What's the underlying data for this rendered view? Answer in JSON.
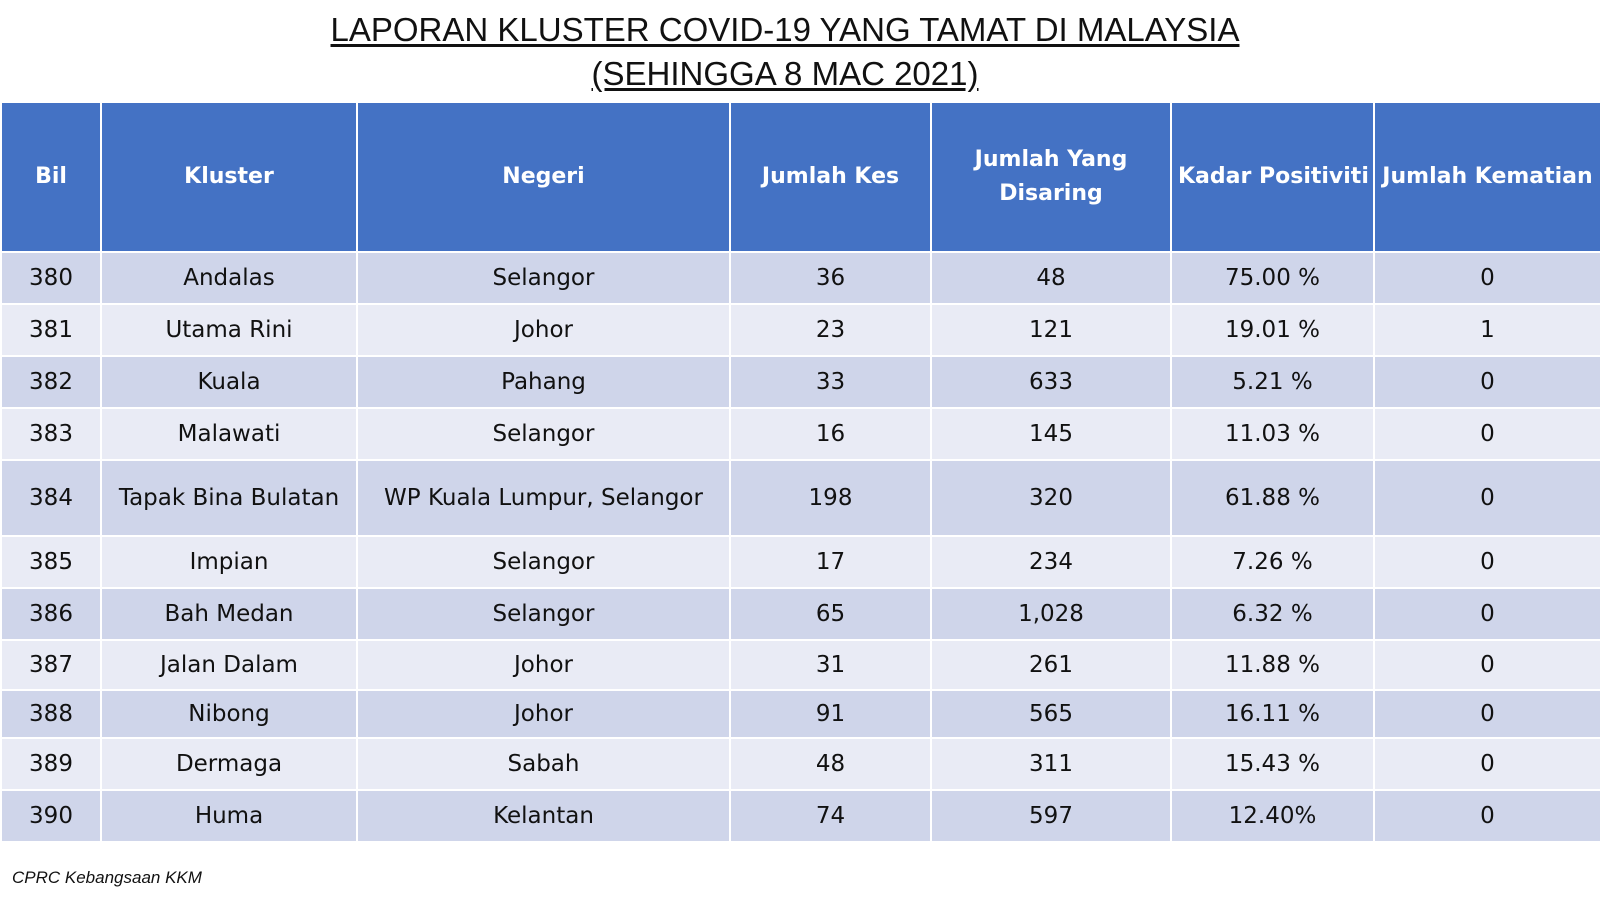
{
  "title": {
    "line1": "LAPORAN KLUSTER COVID-19 YANG TAMAT DI MALAYSIA",
    "line2": "(SEHINGGA  8 MAC 2021)"
  },
  "table": {
    "headers": [
      "Bil",
      "Kluster",
      "Negeri",
      "Jumlah Kes",
      "Jumlah Yang Disaring",
      "Kadar Positiviti",
      "Jumlah Kematian"
    ],
    "rows": [
      [
        "380",
        "Andalas",
        "Selangor",
        "36",
        "48",
        "75.00 %",
        "0"
      ],
      [
        "381",
        "Utama Rini",
        "Johor",
        "23",
        "121",
        "19.01 %",
        "1"
      ],
      [
        "382",
        "Kuala",
        "Pahang",
        "33",
        "633",
        "5.21 %",
        "0"
      ],
      [
        "383",
        "Malawati",
        "Selangor",
        "16",
        "145",
        "11.03 %",
        "0"
      ],
      [
        "384",
        "Tapak Bina Bulatan",
        "WP Kuala Lumpur, Selangor",
        "198",
        "320",
        "61.88 %",
        "0"
      ],
      [
        "385",
        "Impian",
        "Selangor",
        "17",
        "234",
        "7.26 %",
        "0"
      ],
      [
        "386",
        "Bah Medan",
        "Selangor",
        "65",
        "1,028",
        "6.32 %",
        "0"
      ],
      [
        "387",
        "Jalan Dalam",
        "Johor",
        "31",
        "261",
        "11.88 %",
        "0"
      ],
      [
        "388",
        "Nibong",
        "Johor",
        "91",
        "565",
        "16.11 %",
        "0"
      ],
      [
        "389",
        "Dermaga",
        "Sabah",
        "48",
        "311",
        "15.43 %",
        "0"
      ],
      [
        "390",
        "Huma",
        "Kelantan",
        "74",
        "597",
        "12.40%",
        "0"
      ]
    ]
  },
  "footer": "CPRC Kebangsaan KKM",
  "colors": {
    "header_bg": "#4472c4",
    "row_dark": "#cfd5ea",
    "row_light": "#e9ebf5"
  }
}
